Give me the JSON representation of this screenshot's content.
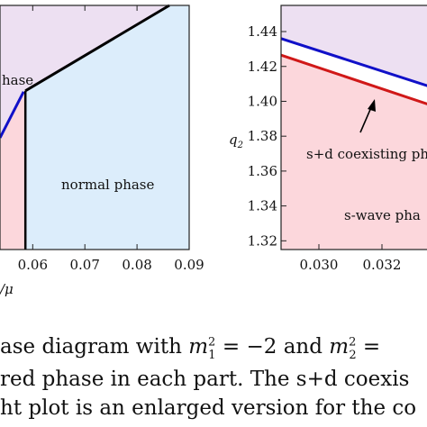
{
  "chart_data": [
    {
      "type": "area",
      "xlim": [
        0.052,
        0.09
      ],
      "ylim": [
        1.2,
        2.0
      ],
      "xticks": [
        "0.06",
        "0.07",
        "0.08",
        "0.09"
      ],
      "xlabel_fragment": "/μ",
      "colors": {
        "purple_region": "#ede0f2",
        "red_region": "#fcd7dc",
        "blue_region": "#dcedfb",
        "black_line": "#000000",
        "blue_line": "#1010c8"
      },
      "regions": [
        {
          "label": "hase"
        },
        {
          "label": "normal phase"
        }
      ],
      "boundaries": [
        {
          "name": "upper boundary",
          "x": [
            0.0586,
            0.0862
          ],
          "y": [
            1.72,
            2.0
          ]
        },
        {
          "name": "vertical boundary",
          "x": [
            0.0586,
            0.0586
          ],
          "y": [
            1.2,
            1.72
          ]
        }
      ]
    },
    {
      "type": "area",
      "xlim": [
        0.0288,
        0.0336
      ],
      "ylim": [
        1.315,
        1.455
      ],
      "xticks": [
        "0.030",
        "0.032",
        "0"
      ],
      "yticks": [
        "1.32",
        "1.34",
        "1.36",
        "1.38",
        "1.40",
        "1.42",
        "1.44"
      ],
      "ylabel": "q",
      "ylabel_sub": "2",
      "colors": {
        "purple_region": "#ede0f2",
        "red_region": "#fcd7dc",
        "white_band": "#ffffff",
        "blue_line": "#1010c8",
        "red_line": "#d01818"
      },
      "series": [
        {
          "x": [
            0.0288,
            0.0336
          ],
          "y": [
            1.436,
            1.408
          ]
        },
        {
          "x": [
            0.0288,
            0.0336
          ],
          "y": [
            1.4265,
            1.3975
          ]
        }
      ],
      "regions": [
        {
          "label": "s+d coexisting ph"
        },
        {
          "label": "s-wave pha"
        }
      ]
    }
  ],
  "caption": {
    "line1_a": "ase diagram with ",
    "line1_m": "m",
    "line1_sub1": "1",
    "line1_sup": "2",
    "line1_b": " = −2 and ",
    "line1_sub2": "2",
    "line1_c": " =",
    "line2": "red phase in each part. The s+d coexis",
    "line3": "ht plot is an enlarged version for the co"
  }
}
